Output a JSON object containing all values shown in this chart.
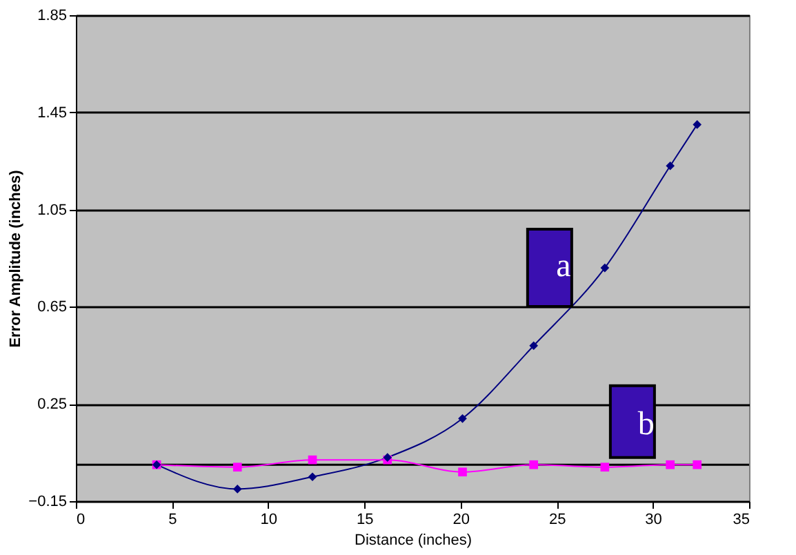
{
  "chart_data": {
    "type": "line",
    "xlabel": "Distance (inches)",
    "ylabel": "Error Amplitude (inches)",
    "xlim": [
      0,
      35
    ],
    "xticks": [
      0,
      5,
      10,
      15,
      20,
      25,
      30,
      35
    ],
    "ylim": [
      -0.15,
      1.85
    ],
    "yticks": [
      -0.15,
      0.25,
      0.65,
      1.05,
      1.45,
      1.85
    ],
    "grid": "y",
    "ref_lines": [
      {
        "axis": "y",
        "value": 0,
        "color": "#000000"
      }
    ],
    "series": [
      {
        "name": "a",
        "color": "#000080",
        "marker": "diamond",
        "x": [
          4.2,
          8.4,
          12.3,
          16.2,
          20.1,
          23.8,
          27.5,
          30.9,
          32.3
        ],
        "values": [
          0,
          -0.1,
          -0.05,
          0.03,
          0.19,
          0.49,
          0.81,
          1.23,
          1.4
        ]
      },
      {
        "name": "b",
        "color": "#ff00ff",
        "marker": "square",
        "x": [
          4.2,
          8.4,
          12.3,
          16.2,
          20.1,
          23.8,
          27.5,
          30.9,
          32.3
        ],
        "values": [
          0,
          -0.01,
          0.02,
          0.02,
          -0.03,
          0,
          -0.01,
          0,
          0
        ]
      }
    ]
  }
}
